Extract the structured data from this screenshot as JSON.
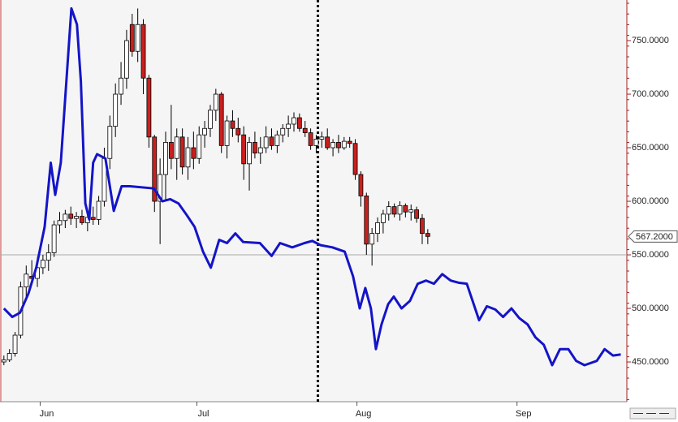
{
  "chart_data": {
    "type": "candlestick",
    "xlim": [
      -0.7,
      111.4
    ],
    "xticks": [
      {
        "value": 6.5,
        "label": "Jun"
      },
      {
        "value": 34.6,
        "label": "Jul"
      },
      {
        "value": 63.3,
        "label": "Aug"
      },
      {
        "value": 92,
        "label": "Sep"
      }
    ],
    "ylim": [
      412.9,
      787.9
    ],
    "yticks": [
      {
        "value": 450,
        "label": "450.0000"
      },
      {
        "value": 500,
        "label": "500.0000"
      },
      {
        "value": 550,
        "label": "550.0000"
      },
      {
        "value": 600,
        "label": "600.0000"
      },
      {
        "value": 650,
        "label": "650.0000"
      },
      {
        "value": 700,
        "label": "700.0000"
      },
      {
        "value": 750,
        "label": "750.0000"
      }
    ],
    "reference_line": 550,
    "marker_x": 56.3,
    "last_price": {
      "value": 567.2,
      "label": "567.2000"
    },
    "candles": {
      "up_color": "#ffffff",
      "down_color": "#c8201e",
      "x": [
        0,
        1,
        2,
        3,
        4,
        5,
        6,
        7,
        8,
        9,
        10,
        11,
        12,
        13,
        14,
        15,
        16,
        17,
        18,
        19,
        20,
        21,
        22,
        23,
        24,
        25,
        26,
        27,
        28,
        29,
        30,
        31,
        32,
        33,
        34,
        35,
        36,
        37,
        38,
        39,
        40,
        41,
        42,
        43,
        44,
        45,
        46,
        47,
        48,
        49,
        50,
        51,
        52,
        53,
        54,
        55,
        56,
        57,
        58,
        59,
        60,
        61,
        62,
        63,
        64,
        65,
        66,
        67,
        68,
        69,
        70,
        71,
        72,
        73,
        74,
        75,
        76
      ],
      "open": [
        450,
        452,
        458,
        475,
        520,
        530,
        528,
        538,
        545,
        552,
        578,
        582,
        588,
        584,
        586,
        580,
        585,
        583,
        600,
        640,
        670,
        700,
        715,
        765,
        740,
        765,
        715,
        660,
        600,
        625,
        655,
        640,
        660,
        632,
        650,
        640,
        662,
        668,
        685,
        700,
        652,
        675,
        668,
        662,
        635,
        655,
        645,
        650,
        660,
        652,
        662,
        668,
        672,
        678,
        668,
        664,
        652,
        658,
        660,
        650,
        655,
        650,
        656,
        654,
        625,
        605,
        560,
        570,
        580,
        588,
        595,
        588,
        596,
        590,
        592,
        584,
        570
      ],
      "high": [
        456,
        462,
        478,
        525,
        540,
        545,
        548,
        550,
        560,
        582,
        590,
        592,
        595,
        590,
        592,
        590,
        595,
        605,
        650,
        680,
        710,
        730,
        760,
        775,
        780,
        770,
        718,
        662,
        640,
        665,
        690,
        668,
        668,
        660,
        665,
        670,
        675,
        690,
        705,
        702,
        680,
        685,
        678,
        670,
        660,
        665,
        660,
        670,
        668,
        666,
        672,
        680,
        683,
        682,
        675,
        668,
        662,
        665,
        668,
        658,
        662,
        660,
        660,
        658,
        628,
        608,
        575,
        585,
        592,
        600,
        598,
        600,
        598,
        597,
        595,
        588,
        574
      ],
      "low": [
        447,
        450,
        455,
        472,
        510,
        522,
        520,
        532,
        535,
        548,
        570,
        575,
        578,
        575,
        578,
        572,
        578,
        578,
        595,
        630,
        660,
        690,
        705,
        735,
        730,
        700,
        650,
        590,
        560,
        600,
        630,
        620,
        625,
        620,
        630,
        635,
        650,
        660,
        675,
        645,
        640,
        660,
        655,
        620,
        610,
        640,
        635,
        645,
        648,
        645,
        655,
        660,
        665,
        665,
        660,
        648,
        645,
        650,
        648,
        642,
        645,
        648,
        650,
        620,
        595,
        550,
        540,
        562,
        570,
        582,
        585,
        582,
        585,
        582,
        580,
        560,
        560
      ],
      "close": [
        452,
        458,
        475,
        520,
        532,
        528,
        538,
        545,
        552,
        578,
        582,
        588,
        584,
        586,
        580,
        585,
        583,
        600,
        640,
        670,
        700,
        715,
        750,
        740,
        765,
        715,
        660,
        600,
        625,
        655,
        640,
        660,
        632,
        650,
        640,
        662,
        668,
        685,
        700,
        652,
        675,
        668,
        662,
        635,
        655,
        645,
        650,
        660,
        652,
        662,
        668,
        672,
        678,
        668,
        664,
        652,
        658,
        660,
        650,
        655,
        650,
        656,
        654,
        625,
        605,
        560,
        570,
        580,
        588,
        595,
        588,
        596,
        590,
        592,
        584,
        570,
        567.2
      ]
    },
    "line": {
      "color": "#1414c8",
      "x": [
        0,
        1.5,
        2.9,
        4.4,
        5.8,
        7.3,
        8.4,
        9.2,
        10.2,
        11.2,
        12.1,
        13.1,
        13.8,
        14.6,
        15.3,
        16.0,
        16.7,
        18.2,
        19.7,
        21.1,
        22.6,
        26.9,
        28.4,
        29.8,
        31.3,
        32.8,
        34.2,
        35.7,
        37.1,
        38.6,
        40.0,
        41.5,
        42.9,
        45.9,
        48.0,
        49.5,
        51.7,
        53.9,
        55.3,
        56.8,
        58.9,
        61.1,
        62.6,
        63.8,
        64.8,
        65.8,
        66.7,
        67.7,
        68.9,
        69.9,
        71.3,
        72.8,
        74.2,
        75.7,
        77.1,
        78.6,
        80.1,
        81.5,
        83.0,
        85.2,
        86.6,
        88.1,
        89.5,
        91.0,
        92.4,
        93.9,
        95.3,
        96.8,
        98.3,
        99.7,
        101.2,
        102.6,
        104.1,
        106.3,
        107.7,
        109.2,
        110.6
      ],
      "values": [
        500,
        492,
        496,
        514,
        538,
        576,
        636,
        606,
        636,
        712,
        780,
        765,
        712,
        598,
        583,
        636,
        644,
        640,
        591,
        614,
        614,
        612,
        600,
        602,
        598,
        587,
        576,
        553,
        538,
        564,
        561,
        570,
        562,
        561,
        549,
        561,
        557,
        561,
        563,
        559,
        557,
        553,
        530,
        500,
        519,
        500,
        462,
        485,
        504,
        511,
        500,
        507,
        523,
        526,
        523,
        532,
        526,
        524,
        523,
        489,
        502,
        499,
        492,
        500,
        491,
        485,
        473,
        466,
        447,
        462,
        462,
        451,
        447,
        451,
        462,
        456,
        457
      ]
    }
  }
}
